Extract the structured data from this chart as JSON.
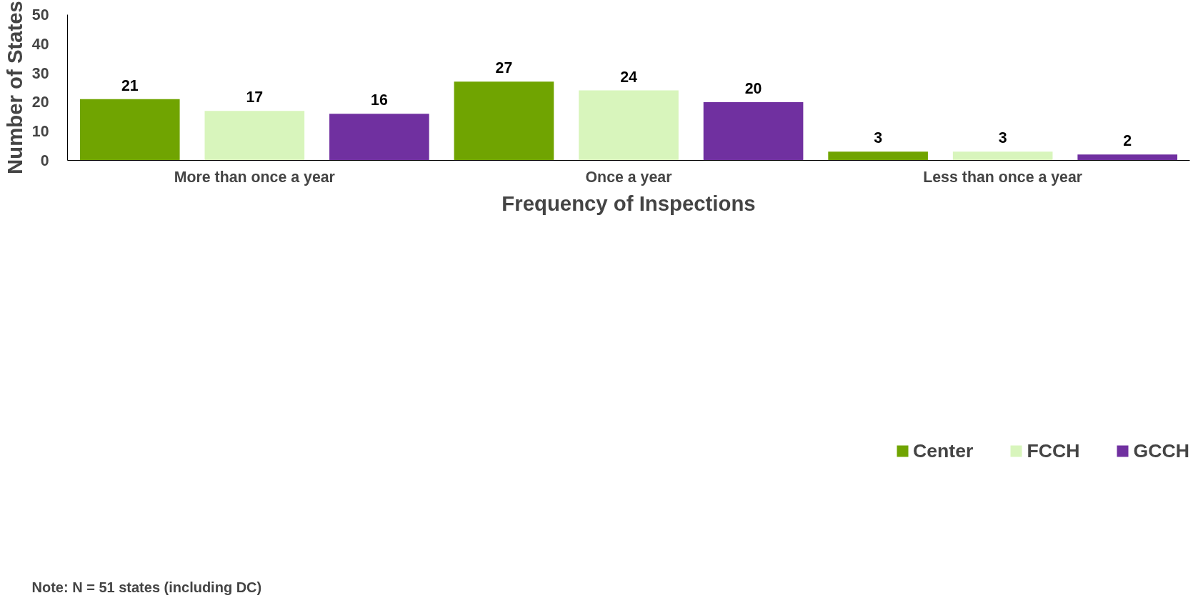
{
  "chart_data": {
    "type": "bar",
    "xlabel": "Frequency of Inspections",
    "ylabel": "Number of States",
    "categories": [
      "More than once a year",
      "Once a year",
      "Less than once a year"
    ],
    "series": [
      {
        "name": "Center",
        "color": "#70a401",
        "values": [
          21,
          27,
          3
        ]
      },
      {
        "name": "FCCH",
        "color": "#d8f5bc",
        "values": [
          17,
          24,
          3
        ]
      },
      {
        "name": "GCCH",
        "color": "#7030a0",
        "values": [
          16,
          20,
          2
        ]
      }
    ],
    "ylim": [
      0,
      50
    ],
    "yticks": [
      0,
      10,
      20,
      30,
      40,
      50
    ],
    "grid": false,
    "legend": "bottom right",
    "data_labels": true,
    "annotations": [
      "Note: N = 51 states (including DC)"
    ]
  }
}
